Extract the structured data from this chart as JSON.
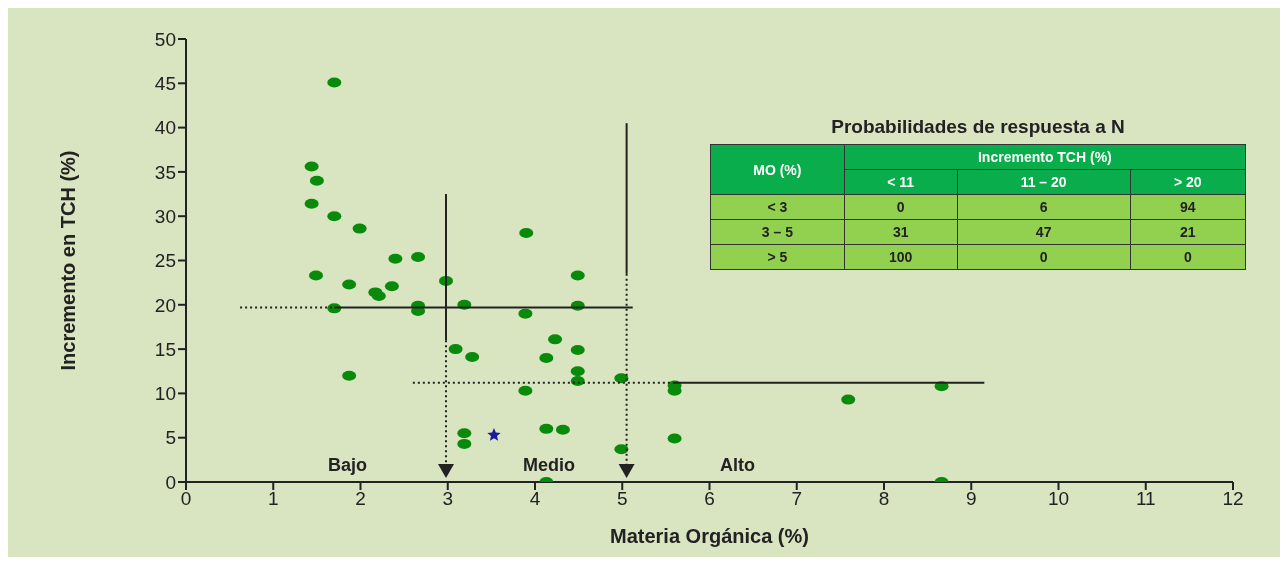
{
  "chart_data": [
    {
      "type": "scatter",
      "xlabel": "Materia Orgánica (%)",
      "ylabel": "Incremento en TCH (%)",
      "xlim": [
        0,
        12
      ],
      "xticks": [
        0,
        1,
        2,
        3,
        4,
        5,
        6,
        7,
        8,
        9,
        10,
        11,
        12
      ],
      "ylim": [
        0,
        50
      ],
      "yticks": [
        0,
        5,
        10,
        15,
        20,
        25,
        30,
        35,
        40,
        45,
        50
      ],
      "annotations": [
        "Bajo",
        "Medio",
        "Alto"
      ],
      "series": [
        {
          "type": "scatter",
          "marker": "circle",
          "color": "#0a8a0a",
          "x": [
            1.7,
            1.44,
            1.5,
            1.44,
            1.7,
            1.99,
            1.49,
            1.87,
            2.4,
            2.66,
            2.17,
            2.21,
            2.36,
            1.7,
            2.66,
            2.66,
            2.98,
            3.19,
            1.87,
            3.09,
            3.28,
            3.9,
            3.89,
            4.49,
            4.49,
            4.23,
            4.13,
            4.49,
            4.49,
            4.49,
            3.89,
            3.19,
            3.19,
            4.13,
            4.32,
            4.13,
            4.99,
            4.99,
            5.6,
            5.6,
            5.6,
            7.59,
            8.66,
            8.66
          ],
          "values": [
            45.1,
            35.6,
            34.0,
            31.4,
            30.0,
            28.6,
            23.3,
            22.3,
            25.2,
            25.4,
            21.4,
            21.0,
            22.1,
            19.6,
            19.9,
            19.3,
            22.7,
            20.0,
            12.0,
            15.0,
            14.1,
            28.1,
            19.0,
            23.3,
            19.9,
            16.1,
            14.0,
            14.9,
            12.5,
            11.4,
            10.3,
            5.5,
            4.3,
            6.0,
            5.9,
            0,
            11.7,
            3.7,
            10.9,
            10.3,
            4.9,
            9.3,
            10.8,
            0
          ]
        },
        {
          "type": "scatter",
          "marker": "star",
          "color": "#1a1aa0",
          "x": [
            3.53
          ],
          "values": [
            5.3
          ]
        },
        {
          "type": "line",
          "line_style": "dotted",
          "color": "#222222",
          "x": [
            0.62,
            1.7
          ],
          "values": [
            19.7,
            19.7
          ]
        },
        {
          "type": "line",
          "line_style": "solid",
          "color": "#222222",
          "x": [
            1.7,
            5.12
          ],
          "values": [
            19.7,
            19.7
          ]
        },
        {
          "type": "line",
          "line_style": "dotted",
          "color": "#222222",
          "x": [
            2.6,
            5.6
          ],
          "values": [
            11.2,
            11.2
          ]
        },
        {
          "type": "line",
          "line_style": "solid",
          "color": "#222222",
          "x": [
            5.6,
            9.15
          ],
          "values": [
            11.2,
            11.2
          ]
        },
        {
          "type": "line",
          "line_style": "solid",
          "color": "#222222",
          "x": [
            2.98,
            2.98
          ],
          "values": [
            32.5,
            16.0
          ]
        },
        {
          "type": "line",
          "line_style": "solid",
          "color": "#222222",
          "x": [
            5.05,
            5.05
          ],
          "values": [
            40.5,
            23.5
          ]
        }
      ]
    },
    {
      "type": "other",
      "title": "Probabilidades de respuesta a N",
      "annotations": [
        "MO (%)",
        "Incremento TCH (%)",
        "< 11",
        "11 – 20",
        "> 20",
        "< 3",
        "0",
        "6",
        "94",
        "3 – 5",
        "31",
        "47",
        "21",
        "> 5",
        "100",
        "0",
        "0"
      ]
    }
  ]
}
